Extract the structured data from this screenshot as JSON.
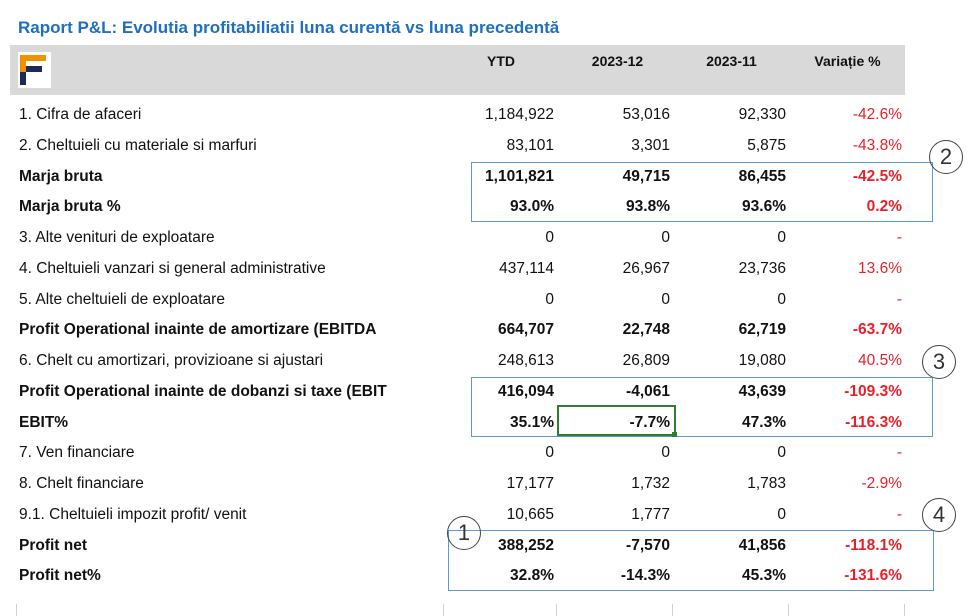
{
  "title": "Raport P&L:  Evolutia profitabiliatii luna curentă vs luna precedentă",
  "headers": [
    "YTD",
    "2023-12",
    "2023-11",
    "Variație %"
  ],
  "rows": [
    {
      "label": "1. Cifra de afaceri",
      "ytd": "1,184,922",
      "m12": "53,016",
      "m11": "92,330",
      "var": "-42.6%",
      "bold": false
    },
    {
      "label": "2. Cheltuieli cu materiale si marfuri",
      "ytd": "83,101",
      "m12": "3,301",
      "m11": "5,875",
      "var": "-43.8%",
      "bold": false
    },
    {
      "label": "Marja bruta",
      "ytd": "1,101,821",
      "m12": "49,715",
      "m11": "86,455",
      "var": "-42.5%",
      "bold": true
    },
    {
      "label": "Marja bruta %",
      "ytd": "93.0%",
      "m12": "93.8%",
      "m11": "93.6%",
      "var": "0.2%",
      "bold": true
    },
    {
      "label": "3. Alte venituri de exploatare",
      "ytd": "0",
      "m12": "0",
      "m11": "0",
      "var": "-",
      "bold": false
    },
    {
      "label": "4. Cheltuieli vanzari si general administrative",
      "ytd": "437,114",
      "m12": "26,967",
      "m11": "23,736",
      "var": "13.6%",
      "bold": false
    },
    {
      "label": "5. Alte cheltuieli de exploatare",
      "ytd": "0",
      "m12": "0",
      "m11": "0",
      "var": "-",
      "bold": false
    },
    {
      "label": "Profit Operational inainte de amortizare (EBITDA",
      "ytd": "664,707",
      "m12": "22,748",
      "m11": "62,719",
      "var": "-63.7%",
      "bold": true
    },
    {
      "label": "6. Chelt cu amortizari, provizioane si ajustari",
      "ytd": "248,613",
      "m12": "26,809",
      "m11": "19,080",
      "var": "40.5%",
      "bold": false
    },
    {
      "label": "Profit Operational inainte de dobanzi si taxe (EBIT",
      "ytd": "416,094",
      "m12": "-4,061",
      "m11": "43,639",
      "var": "-109.3%",
      "bold": true
    },
    {
      "label": "EBIT%",
      "ytd": "35.1%",
      "m12": "-7.7%",
      "m11": "47.3%",
      "var": "-116.3%",
      "bold": true
    },
    {
      "label": "7. Ven financiare",
      "ytd": "0",
      "m12": "0",
      "m11": "0",
      "var": "-",
      "bold": false
    },
    {
      "label": "8. Chelt financiare",
      "ytd": "17,177",
      "m12": "1,732",
      "m11": "1,783",
      "var": "-2.9%",
      "bold": false
    },
    {
      "label": "9.1. Cheltuieli impozit profit/ venit",
      "ytd": "10,665",
      "m12": "1,777",
      "m11": "0",
      "var": "-",
      "bold": false
    },
    {
      "label": "Profit net",
      "ytd": "388,252",
      "m12": "-7,570",
      "m11": "41,856",
      "var": "-118.1%",
      "bold": true
    },
    {
      "label": "Profit net%",
      "ytd": "32.8%",
      "m12": "-14.3%",
      "m11": "45.3%",
      "var": "-131.6%",
      "bold": true
    }
  ],
  "annotations": [
    "1",
    "2",
    "3",
    "4"
  ],
  "colors": {
    "title": "#1f6fc0",
    "negative": "#e8202a",
    "box": "#5b9bd5",
    "selection": "#2e7d32",
    "logo_orange": "#f39200",
    "logo_navy": "#1b2a5c"
  }
}
